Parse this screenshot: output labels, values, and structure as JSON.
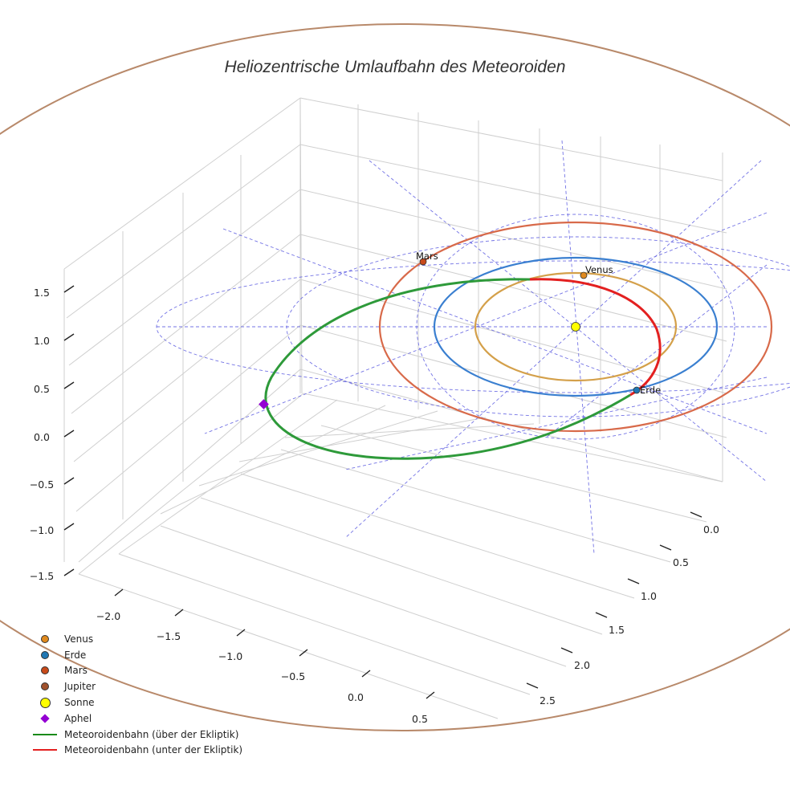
{
  "title": "Heliozentrische Umlaufbahn des Meteoroiden",
  "chart_data": {
    "type": "line",
    "title": "Heliozentrische Umlaufbahn des Meteoroiden",
    "projection": "3d",
    "grid": true,
    "legend_placement": "bottom-left",
    "x_ticks": [
      "−2.0",
      "−1.5",
      "−1.0",
      "−0.5",
      "0.0",
      "0.5"
    ],
    "y_ticks": [
      "0.0",
      "0.5",
      "1.0",
      "1.5",
      "2.0",
      "2.5"
    ],
    "z_ticks": [
      "1.5",
      "1.0",
      "0.5",
      "0.0",
      "−0.5",
      "−1.0",
      "−1.5"
    ],
    "xlim": [
      -2.3,
      0.7
    ],
    "ylim": [
      -0.3,
      2.8
    ],
    "zlim": [
      -1.7,
      1.7
    ],
    "planets": [
      {
        "name": "Venus",
        "orbit_radius_au": 0.72,
        "color": "#d4a04a",
        "marker_color": "#e08a1e",
        "label": "Venus"
      },
      {
        "name": "Erde",
        "orbit_radius_au": 1.0,
        "color": "#3a7fd0",
        "marker_color": "#1f77b4",
        "label": "Erde"
      },
      {
        "name": "Mars",
        "orbit_radius_au": 1.52,
        "color": "#d86a4a",
        "marker_color": "#c84a1a",
        "label": "Mars"
      },
      {
        "name": "Jupiter",
        "orbit_radius_au": 5.2,
        "color": "#b8896a",
        "marker_color": "#a0522d",
        "label": ""
      }
    ],
    "sun": {
      "name": "Sonne",
      "color": "#ffff00"
    },
    "aphel": {
      "name": "Aphel",
      "color": "#9400d3"
    },
    "meteoroid_orbit": {
      "above_ecliptic": {
        "name": "Meteoroidenbahn (über der Ekliptik)",
        "color": "#2e9a3a"
      },
      "below_ecliptic": {
        "name": "Meteoroidenbahn (unter der Ekliptik)",
        "color": "#e32020"
      }
    },
    "ecliptic_grid": {
      "color": "#5a5ae0",
      "style": "dashed"
    }
  },
  "legend": [
    {
      "label": "Venus",
      "symbol": "dot",
      "color": "#e08a1e"
    },
    {
      "label": "Erde",
      "symbol": "dot",
      "color": "#1f77b4"
    },
    {
      "label": "Mars",
      "symbol": "dot",
      "color": "#c84a1a"
    },
    {
      "label": "Jupiter",
      "symbol": "dot",
      "color": "#a0522d"
    },
    {
      "label": "Sonne",
      "symbol": "dot-big",
      "color": "#ffff00"
    },
    {
      "label": "Aphel",
      "symbol": "diamond",
      "color": "#9400d3"
    },
    {
      "label": "Meteoroidenbahn (über der Ekliptik)",
      "symbol": "line",
      "color": "#1a8a1a"
    },
    {
      "label": "Meteoroidenbahn (unter der Ekliptik)",
      "symbol": "line",
      "color": "#e32020"
    }
  ]
}
